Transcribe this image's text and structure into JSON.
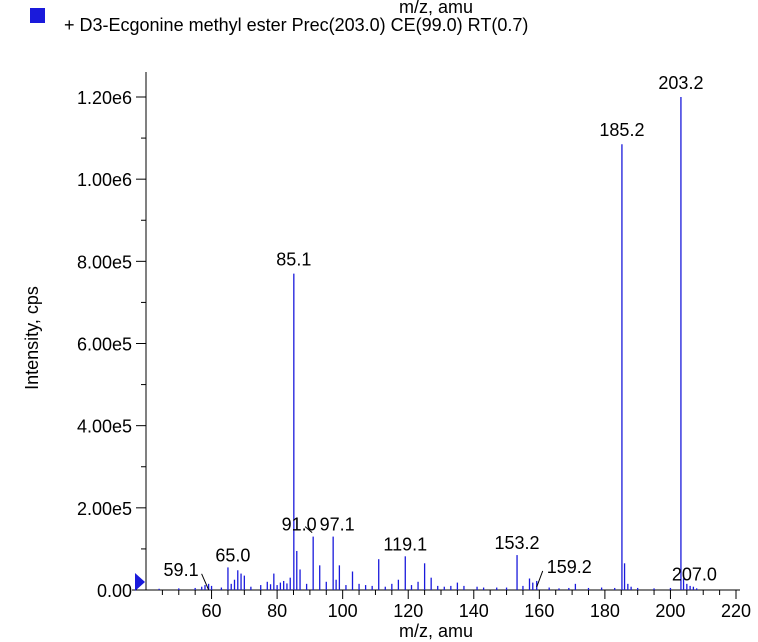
{
  "header": {
    "cut_top_text": "m/z, amu",
    "legend_label": "+ D3-Ecgonine methyl ester Prec(203.0) CE(99.0) RT(0.7)",
    "legend_color": "#1a1adb"
  },
  "chart_data": {
    "type": "bar",
    "title": "",
    "xlabel": "m/z, amu",
    "ylabel": "Intensity, cps",
    "xlim": [
      40,
      220
    ],
    "ylim": [
      0,
      1250000
    ],
    "grid": false,
    "bar_color": "#1a1adb",
    "x_ticks": [
      {
        "value": 60,
        "label": "60"
      },
      {
        "value": 80,
        "label": "80"
      },
      {
        "value": 100,
        "label": "100"
      },
      {
        "value": 120,
        "label": "120"
      },
      {
        "value": 140,
        "label": "140"
      },
      {
        "value": 160,
        "label": "160"
      },
      {
        "value": 180,
        "label": "180"
      },
      {
        "value": 200,
        "label": "200"
      },
      {
        "value": 220,
        "label": "220"
      }
    ],
    "y_ticks": [
      {
        "value": 0,
        "label": "0.00"
      },
      {
        "value": 200000,
        "label": "2.00e5"
      },
      {
        "value": 400000,
        "label": "4.00e5"
      },
      {
        "value": 600000,
        "label": "6.00e5"
      },
      {
        "value": 800000,
        "label": "8.00e5"
      },
      {
        "value": 1000000,
        "label": "1.00e6"
      },
      {
        "value": 1200000,
        "label": "1.20e6"
      }
    ],
    "peaks": [
      {
        "x": 44.0,
        "y": 3000
      },
      {
        "x": 50.0,
        "y": 4000
      },
      {
        "x": 55.0,
        "y": 5000
      },
      {
        "x": 57.0,
        "y": 8000
      },
      {
        "x": 58.0,
        "y": 12000
      },
      {
        "x": 59.1,
        "y": 15000
      },
      {
        "x": 60.0,
        "y": 10000
      },
      {
        "x": 63.0,
        "y": 6000
      },
      {
        "x": 65.0,
        "y": 55000
      },
      {
        "x": 66.0,
        "y": 15000
      },
      {
        "x": 67.0,
        "y": 25000
      },
      {
        "x": 68.0,
        "y": 48000
      },
      {
        "x": 69.0,
        "y": 40000
      },
      {
        "x": 70.0,
        "y": 35000
      },
      {
        "x": 72.0,
        "y": 8000
      },
      {
        "x": 75.0,
        "y": 12000
      },
      {
        "x": 77.0,
        "y": 20000
      },
      {
        "x": 78.0,
        "y": 14000
      },
      {
        "x": 79.0,
        "y": 40000
      },
      {
        "x": 80.0,
        "y": 12000
      },
      {
        "x": 81.0,
        "y": 18000
      },
      {
        "x": 82.0,
        "y": 22000
      },
      {
        "x": 83.0,
        "y": 16000
      },
      {
        "x": 84.0,
        "y": 30000
      },
      {
        "x": 85.1,
        "y": 770000
      },
      {
        "x": 86.0,
        "y": 95000
      },
      {
        "x": 87.0,
        "y": 50000
      },
      {
        "x": 89.0,
        "y": 15000
      },
      {
        "x": 91.0,
        "y": 130000
      },
      {
        "x": 93.0,
        "y": 60000
      },
      {
        "x": 95.0,
        "y": 20000
      },
      {
        "x": 97.1,
        "y": 130000
      },
      {
        "x": 98.0,
        "y": 25000
      },
      {
        "x": 99.0,
        "y": 60000
      },
      {
        "x": 101.0,
        "y": 12000
      },
      {
        "x": 103.0,
        "y": 45000
      },
      {
        "x": 105.0,
        "y": 15000
      },
      {
        "x": 107.0,
        "y": 12000
      },
      {
        "x": 109.0,
        "y": 10000
      },
      {
        "x": 111.0,
        "y": 75000
      },
      {
        "x": 113.0,
        "y": 8000
      },
      {
        "x": 115.0,
        "y": 15000
      },
      {
        "x": 117.0,
        "y": 25000
      },
      {
        "x": 119.1,
        "y": 82000
      },
      {
        "x": 121.0,
        "y": 12000
      },
      {
        "x": 123.0,
        "y": 20000
      },
      {
        "x": 125.0,
        "y": 65000
      },
      {
        "x": 127.0,
        "y": 30000
      },
      {
        "x": 129.0,
        "y": 10000
      },
      {
        "x": 131.0,
        "y": 8000
      },
      {
        "x": 133.0,
        "y": 10000
      },
      {
        "x": 135.0,
        "y": 18000
      },
      {
        "x": 137.0,
        "y": 10000
      },
      {
        "x": 141.0,
        "y": 8000
      },
      {
        "x": 143.0,
        "y": 6000
      },
      {
        "x": 147.0,
        "y": 6000
      },
      {
        "x": 150.0,
        "y": 6000
      },
      {
        "x": 153.2,
        "y": 85000
      },
      {
        "x": 155.0,
        "y": 10000
      },
      {
        "x": 157.0,
        "y": 28000
      },
      {
        "x": 158.0,
        "y": 18000
      },
      {
        "x": 159.2,
        "y": 22000
      },
      {
        "x": 163.0,
        "y": 6000
      },
      {
        "x": 166.0,
        "y": 4000
      },
      {
        "x": 169.0,
        "y": 5000
      },
      {
        "x": 171.0,
        "y": 15000
      },
      {
        "x": 175.0,
        "y": 5000
      },
      {
        "x": 179.0,
        "y": 6000
      },
      {
        "x": 183.0,
        "y": 5000
      },
      {
        "x": 185.2,
        "y": 1085000
      },
      {
        "x": 186.0,
        "y": 65000
      },
      {
        "x": 187.0,
        "y": 15000
      },
      {
        "x": 188.0,
        "y": 8000
      },
      {
        "x": 190.0,
        "y": 5000
      },
      {
        "x": 195.0,
        "y": 4000
      },
      {
        "x": 200.0,
        "y": 5000
      },
      {
        "x": 203.2,
        "y": 1200000
      },
      {
        "x": 204.0,
        "y": 28000
      },
      {
        "x": 205.0,
        "y": 15000
      },
      {
        "x": 206.0,
        "y": 10000
      },
      {
        "x": 207.0,
        "y": 8000
      },
      {
        "x": 208.0,
        "y": 4000
      }
    ],
    "annotations": [
      {
        "label": "203.2",
        "x": 203.2,
        "y": 1200000
      },
      {
        "label": "185.2",
        "x": 185.2,
        "y": 1085000
      },
      {
        "label": "85.1",
        "x": 85.1,
        "y": 770000
      },
      {
        "label": "91.0",
        "x": 91.0,
        "y": 130000
      },
      {
        "label": "97.1",
        "x": 97.1,
        "y": 130000
      },
      {
        "label": "119.1",
        "x": 119.1,
        "y": 82000
      },
      {
        "label": "153.2",
        "x": 153.2,
        "y": 85000
      },
      {
        "label": "65.0",
        "x": 65.0,
        "y": 55000
      },
      {
        "label": "159.2",
        "x": 159.2,
        "y": 22000
      },
      {
        "label": "59.1",
        "x": 59.1,
        "y": 15000
      },
      {
        "label": "207.0",
        "x": 207.0,
        "y": 8000
      }
    ]
  }
}
